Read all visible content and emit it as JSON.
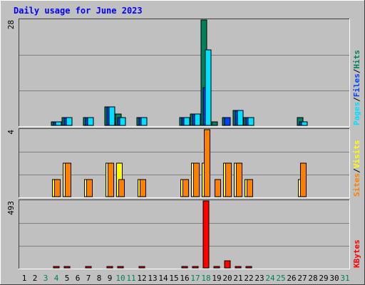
{
  "chart_data": {
    "type": "bar",
    "title": "Daily usage for June 2023",
    "days": [
      1,
      2,
      3,
      4,
      5,
      6,
      7,
      8,
      9,
      10,
      11,
      12,
      13,
      14,
      15,
      16,
      17,
      18,
      19,
      20,
      21,
      22,
      23,
      24,
      25,
      26,
      27,
      28,
      29,
      30,
      31
    ],
    "weekend_days": [
      3,
      4,
      10,
      11,
      17,
      18,
      24,
      25,
      31
    ],
    "colors": {
      "hits": "#00805c",
      "files": "#0040ff",
      "pages": "#00e0ff",
      "visits": "#ffff00",
      "sites": "#ff8000",
      "kbytes": "#ff0000",
      "weekend_label": "#00805c",
      "weekday_label": "#000000",
      "title": "#0000ff"
    },
    "panels": [
      {
        "id": "hits_panel",
        "max_label": "28",
        "ymax": 28,
        "legend": [
          {
            "text": "Pages",
            "color": "#00e0ff"
          },
          {
            "text": "/",
            "color": "#000000"
          },
          {
            "text": "Files",
            "color": "#0040ff"
          },
          {
            "text": "/",
            "color": "#000000"
          },
          {
            "text": "Hits",
            "color": "#00805c"
          }
        ],
        "series": [
          {
            "name": "Hits",
            "color": "#00805c",
            "values": [
              0,
              0,
              0,
              1,
              2,
              0,
              2,
              0,
              5,
              3,
              0,
              2,
              0,
              0,
              0,
              2,
              3,
              28,
              1,
              2,
              4,
              2,
              0,
              0,
              0,
              0,
              2,
              0,
              0,
              0,
              0
            ]
          },
          {
            "name": "Files",
            "color": "#0040ff",
            "values": [
              0,
              0,
              0,
              1,
              2,
              0,
              2,
              0,
              5,
              2,
              0,
              2,
              0,
              0,
              0,
              2,
              3,
              10,
              0,
              2,
              4,
              2,
              0,
              0,
              0,
              0,
              1,
              0,
              0,
              0,
              0
            ]
          },
          {
            "name": "Pages",
            "color": "#00e0ff",
            "values": [
              0,
              0,
              0,
              1,
              2,
              0,
              2,
              0,
              5,
              2,
              0,
              2,
              0,
              0,
              0,
              2,
              3,
              20,
              0,
              0,
              4,
              2,
              0,
              0,
              0,
              0,
              1,
              0,
              0,
              0,
              0
            ]
          }
        ]
      },
      {
        "id": "visits_panel",
        "max_label": "4",
        "ymax": 4,
        "legend": [
          {
            "text": "Sites",
            "color": "#ff8000"
          },
          {
            "text": "/",
            "color": "#000000"
          },
          {
            "text": "Visits",
            "color": "#ffff00"
          }
        ],
        "series": [
          {
            "name": "Visits",
            "color": "#ffff00",
            "values": [
              0,
              0,
              0,
              1,
              2,
              0,
              1,
              0,
              2,
              2,
              0,
              1,
              0,
              0,
              0,
              1,
              2,
              2,
              0,
              2,
              2,
              1,
              0,
              0,
              0,
              0,
              1,
              0,
              0,
              0,
              0
            ]
          },
          {
            "name": "Sites",
            "color": "#ff8000",
            "values": [
              0,
              0,
              0,
              1,
              2,
              0,
              1,
              0,
              2,
              1,
              0,
              1,
              0,
              0,
              0,
              1,
              2,
              4,
              1,
              2,
              2,
              1,
              0,
              0,
              0,
              0,
              2,
              0,
              0,
              0,
              0
            ]
          }
        ]
      },
      {
        "id": "kbytes_panel",
        "max_label": "493",
        "ymax": 493,
        "legend": [
          {
            "text": "KBytes",
            "color": "#ff0000"
          }
        ],
        "series": [
          {
            "name": "KBytes",
            "color": "#ff0000",
            "values": [
              0,
              0,
              0,
              1,
              1,
              0,
              1,
              0,
              1,
              1,
              0,
              1,
              0,
              0,
              0,
              1,
              1,
              493,
              1,
              55,
              10,
              2,
              0,
              0,
              0,
              0,
              0,
              0,
              0,
              0,
              0
            ]
          }
        ]
      }
    ]
  }
}
